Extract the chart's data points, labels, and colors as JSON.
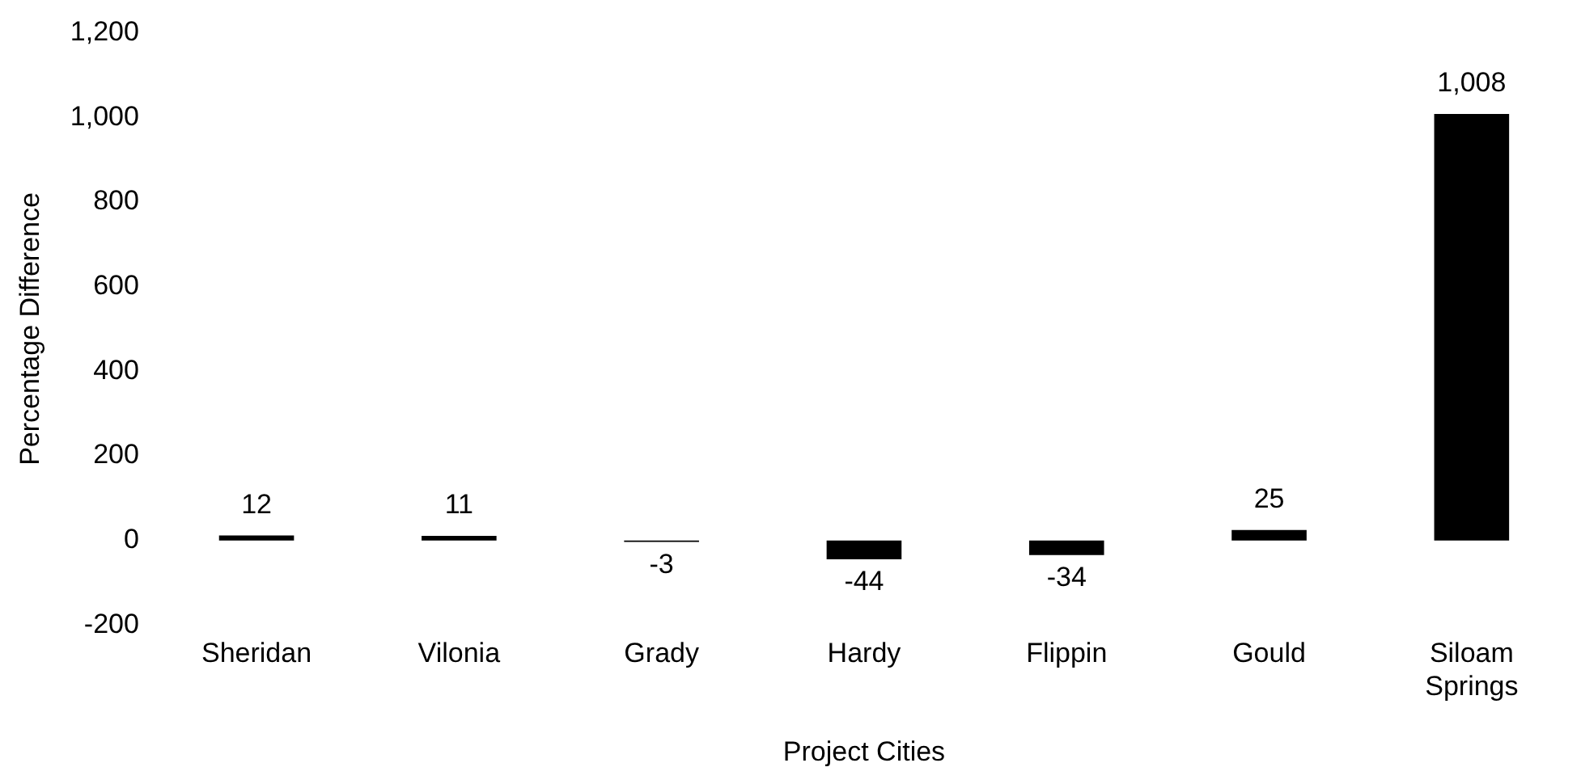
{
  "chart_data": {
    "type": "bar",
    "xlabel": "Project Cities",
    "ylabel": "Percentage Difference",
    "categories": [
      "Sheridan",
      "Vilonia",
      "Grady",
      "Hardy",
      "Flippin",
      "Gould",
      "Siloam Springs"
    ],
    "values": [
      12,
      11,
      -3,
      -44,
      -34,
      25,
      1008
    ],
    "value_labels": [
      "12",
      "11",
      "-3",
      "-44",
      "-34",
      "25",
      "1,008"
    ],
    "color": "#000000",
    "ylim": [
      -200,
      1200
    ],
    "yticks": [
      -200,
      0,
      200,
      400,
      600,
      800,
      {
        "value": 1000,
        "label": "1,000"
      },
      {
        "value": 1200,
        "label": "1,200"
      }
    ],
    "grid": false,
    "legend": false
  }
}
